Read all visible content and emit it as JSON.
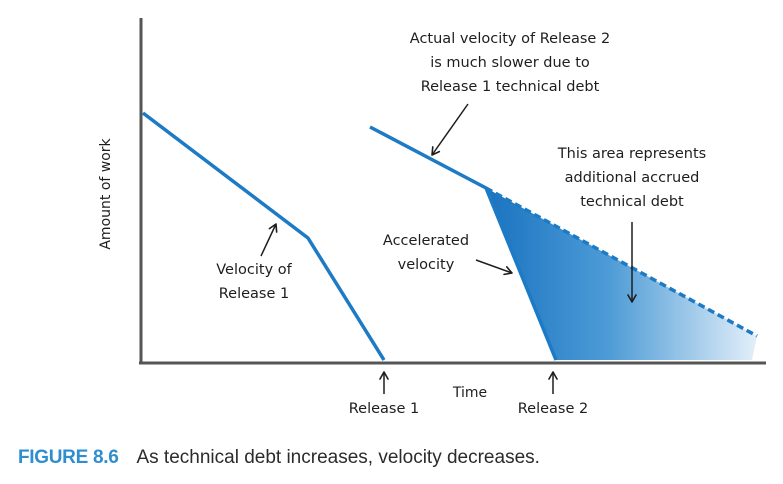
{
  "axes": {
    "y_label": "Amount of work",
    "x_label": "Time"
  },
  "annotations": {
    "actual_velocity": [
      "Actual velocity of Release 2",
      "is much slower due to",
      "Release 1 technical debt"
    ],
    "accrued_area": [
      "This area represents",
      "additional accrued",
      "technical debt"
    ],
    "accelerated": [
      "Accelerated",
      "velocity"
    ],
    "velocity_r1": [
      "Velocity of",
      "Release 1"
    ],
    "release1": "Release 1",
    "release2": "Release 2"
  },
  "caption": {
    "number": "FIGURE 8.6",
    "text": "As technical debt increases, velocity decreases."
  },
  "colors": {
    "line": "#1d7ac4",
    "fill_dark": "#1a73c0",
    "fill_light": "#e3eff9",
    "text": "#1e1e1e",
    "axis": "#555555",
    "caption_number": "#2f8fce"
  }
}
